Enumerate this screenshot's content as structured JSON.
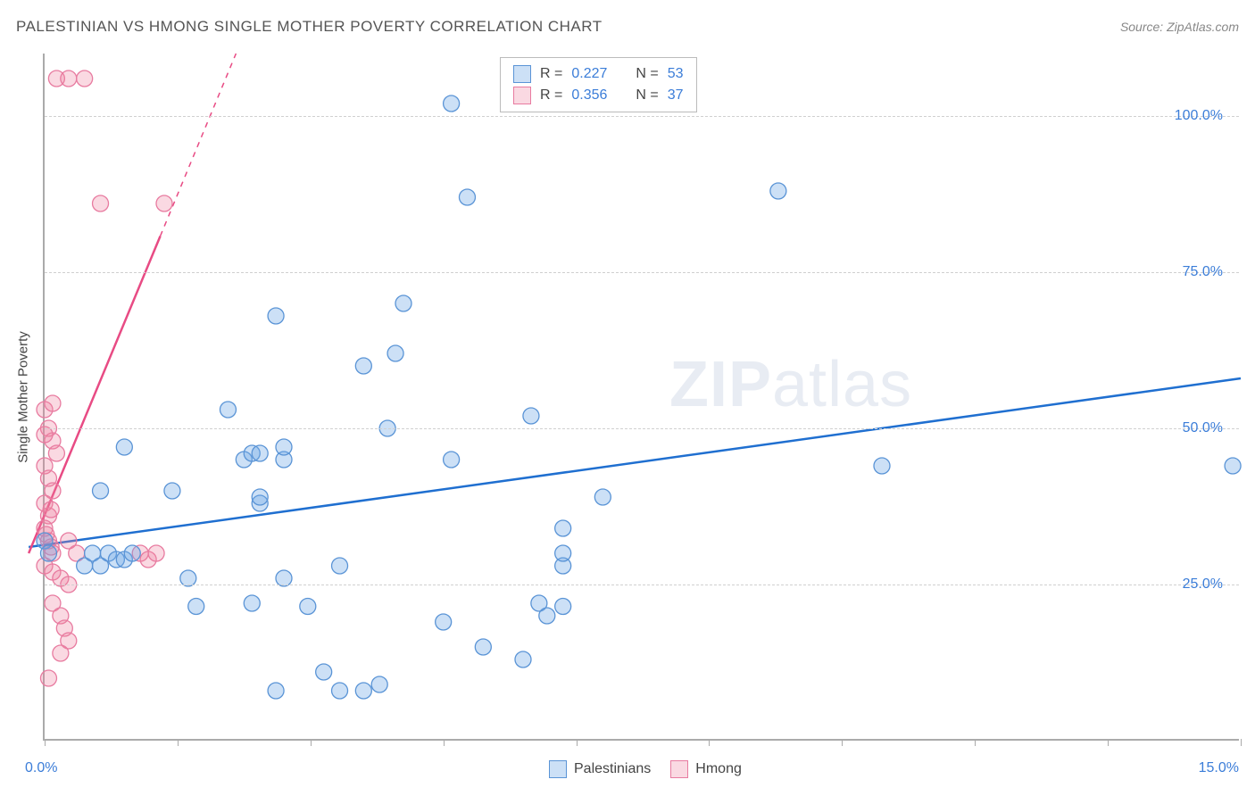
{
  "header": {
    "title": "PALESTINIAN VS HMONG SINGLE MOTHER POVERTY CORRELATION CHART",
    "source": "Source: ZipAtlas.com"
  },
  "axes": {
    "y_title": "Single Mother Poverty",
    "xlim": [
      0,
      15
    ],
    "ylim": [
      0,
      110
    ],
    "y_gridlines": [
      25,
      50,
      75,
      100
    ],
    "y_tick_labels": [
      "25.0%",
      "50.0%",
      "75.0%",
      "100.0%"
    ],
    "x_ticks": [
      0,
      1.667,
      3.333,
      5.0,
      6.667,
      8.333,
      10.0,
      11.667,
      13.333,
      15.0
    ],
    "x_label_min": "0.0%",
    "x_label_max": "15.0%"
  },
  "colors": {
    "series1_fill": "rgba(110,165,230,0.35)",
    "series1_stroke": "#5a94d6",
    "series2_fill": "rgba(240,130,160,0.3)",
    "series2_stroke": "#e87ba0",
    "trend1": "#1f6fd0",
    "trend2": "#e84b84",
    "axis_text": "#3b7dd8",
    "grid": "#d0d0d0",
    "background": "#ffffff"
  },
  "style": {
    "marker_radius": 9,
    "marker_stroke_width": 1.3,
    "trend_line_width": 2.5
  },
  "watermark": {
    "bold": "ZIP",
    "rest": "atlas"
  },
  "legend_top": {
    "rows": [
      {
        "swatch_fill": "rgba(110,165,230,0.35)",
        "swatch_stroke": "#5a94d6",
        "r_label": "R =",
        "r_val": "0.227",
        "n_label": "N =",
        "n_val": "53"
      },
      {
        "swatch_fill": "rgba(240,130,160,0.3)",
        "swatch_stroke": "#e87ba0",
        "r_label": "R =",
        "r_val": "0.356",
        "n_label": "N =",
        "n_val": "37"
      }
    ]
  },
  "legend_bottom": {
    "items": [
      {
        "swatch_fill": "rgba(110,165,230,0.35)",
        "swatch_stroke": "#5a94d6",
        "label": "Palestinians"
      },
      {
        "swatch_fill": "rgba(240,130,160,0.3)",
        "swatch_stroke": "#e87ba0",
        "label": "Hmong"
      }
    ]
  },
  "trend_lines": {
    "series1": {
      "x1": -0.2,
      "y1": 31,
      "x2": 15,
      "y2": 58
    },
    "series2": {
      "x1": -0.2,
      "y1": 30,
      "x2": 2.4,
      "y2": 110,
      "dash_from_x": 1.45
    }
  },
  "series1_points": [
    [
      0.0,
      32
    ],
    [
      0.05,
      30
    ],
    [
      0.5,
      28
    ],
    [
      0.6,
      30
    ],
    [
      0.7,
      28
    ],
    [
      0.8,
      30
    ],
    [
      0.9,
      29
    ],
    [
      1.0,
      29
    ],
    [
      1.1,
      30
    ],
    [
      0.7,
      40
    ],
    [
      1.6,
      40
    ],
    [
      1.0,
      47
    ],
    [
      2.7,
      38
    ],
    [
      2.7,
      39
    ],
    [
      2.5,
      45
    ],
    [
      2.6,
      46
    ],
    [
      2.7,
      46
    ],
    [
      3.0,
      45
    ],
    [
      3.0,
      47
    ],
    [
      2.3,
      53
    ],
    [
      2.9,
      68
    ],
    [
      4.3,
      50
    ],
    [
      4.0,
      60
    ],
    [
      4.4,
      62
    ],
    [
      4.5,
      70
    ],
    [
      5.1,
      45
    ],
    [
      5.3,
      87
    ],
    [
      5.1,
      102
    ],
    [
      6.1,
      52
    ],
    [
      6.5,
      28
    ],
    [
      6.5,
      30
    ],
    [
      6.5,
      21.5
    ],
    [
      6.5,
      34
    ],
    [
      7.0,
      39
    ],
    [
      9.2,
      88
    ],
    [
      10.5,
      44
    ],
    [
      14.9,
      44
    ],
    [
      1.8,
      26
    ],
    [
      1.9,
      21.5
    ],
    [
      2.6,
      22
    ],
    [
      3.0,
      26
    ],
    [
      3.3,
      21.5
    ],
    [
      3.5,
      11
    ],
    [
      3.7,
      8
    ],
    [
      3.7,
      28
    ],
    [
      4.0,
      8
    ],
    [
      4.2,
      9
    ],
    [
      5.5,
      15
    ],
    [
      6.0,
      13
    ],
    [
      6.2,
      22
    ],
    [
      6.3,
      20
    ],
    [
      2.9,
      8
    ],
    [
      5.0,
      19
    ]
  ],
  "series2_points": [
    [
      0.15,
      106
    ],
    [
      0.3,
      106
    ],
    [
      0.5,
      106
    ],
    [
      0.7,
      86
    ],
    [
      1.5,
      86
    ],
    [
      0.0,
      53
    ],
    [
      0.05,
      50
    ],
    [
      0.1,
      48
    ],
    [
      0.0,
      44
    ],
    [
      0.05,
      42
    ],
    [
      0.1,
      40
    ],
    [
      0.0,
      38
    ],
    [
      0.05,
      36
    ],
    [
      0.08,
      37
    ],
    [
      0.0,
      34
    ],
    [
      0.02,
      33
    ],
    [
      0.05,
      32
    ],
    [
      0.08,
      31
    ],
    [
      0.1,
      30
    ],
    [
      0.3,
      32
    ],
    [
      0.4,
      30
    ],
    [
      0.0,
      28
    ],
    [
      0.1,
      27
    ],
    [
      0.2,
      26
    ],
    [
      0.3,
      25
    ],
    [
      0.1,
      22
    ],
    [
      0.2,
      20
    ],
    [
      0.25,
      18
    ],
    [
      0.3,
      16
    ],
    [
      0.2,
      14
    ],
    [
      1.2,
      30
    ],
    [
      1.3,
      29
    ],
    [
      1.4,
      30
    ],
    [
      0.15,
      46
    ],
    [
      0.0,
      49
    ],
    [
      0.05,
      10
    ],
    [
      0.1,
      54
    ]
  ]
}
